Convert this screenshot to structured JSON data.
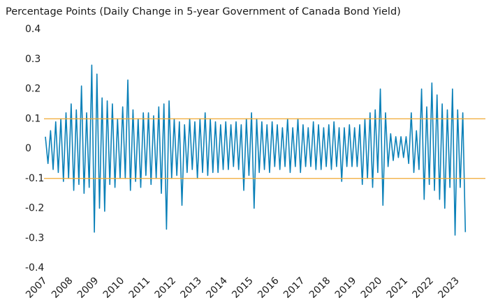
{
  "chart_data": {
    "type": "line",
    "title": "Percentage Points (Daily Change in 5-year Government of Canada Bond Yield)",
    "color": "#0a80b8",
    "ref_color": "#f0a830",
    "hlines": [
      0.1,
      -0.1
    ],
    "grid": false,
    "xlim": [
      2007,
      2023.4
    ],
    "xticks": [
      2007,
      2008,
      2009,
      2010,
      2011,
      2012,
      2013,
      2014,
      2015,
      2016,
      2017,
      2018,
      2019,
      2020,
      2021,
      2022,
      2023
    ],
    "ylim": [
      -0.4,
      0.4
    ],
    "yticks": [
      0.4,
      0.3,
      0.2,
      0.1,
      0,
      -0.1,
      -0.2,
      -0.3,
      -0.4
    ],
    "x": [
      2007.0,
      2007.1,
      2007.2,
      2007.3,
      2007.4,
      2007.5,
      2007.6,
      2007.7,
      2007.8,
      2007.9,
      2008.0,
      2008.1,
      2008.2,
      2008.3,
      2008.4,
      2008.5,
      2008.6,
      2008.7,
      2008.8,
      2008.9,
      2009.0,
      2009.1,
      2009.2,
      2009.3,
      2009.4,
      2009.5,
      2009.6,
      2009.7,
      2009.8,
      2009.9,
      2010.0,
      2010.1,
      2010.2,
      2010.3,
      2010.4,
      2010.5,
      2010.6,
      2010.7,
      2010.8,
      2010.9,
      2011.0,
      2011.1,
      2011.2,
      2011.3,
      2011.4,
      2011.5,
      2011.6,
      2011.7,
      2011.8,
      2011.9,
      2012.0,
      2012.1,
      2012.2,
      2012.3,
      2012.4,
      2012.5,
      2012.6,
      2012.7,
      2012.8,
      2012.9,
      2013.0,
      2013.1,
      2013.2,
      2013.3,
      2013.4,
      2013.5,
      2013.6,
      2013.7,
      2013.8,
      2013.9,
      2014.0,
      2014.1,
      2014.2,
      2014.3,
      2014.4,
      2014.5,
      2014.6,
      2014.7,
      2014.8,
      2014.9,
      2015.0,
      2015.1,
      2015.2,
      2015.3,
      2015.4,
      2015.5,
      2015.6,
      2015.7,
      2015.8,
      2015.9,
      2016.0,
      2016.1,
      2016.2,
      2016.3,
      2016.4,
      2016.5,
      2016.6,
      2016.7,
      2016.8,
      2016.9,
      2017.0,
      2017.1,
      2017.2,
      2017.3,
      2017.4,
      2017.5,
      2017.6,
      2017.7,
      2017.8,
      2017.9,
      2018.0,
      2018.1,
      2018.2,
      2018.3,
      2018.4,
      2018.5,
      2018.6,
      2018.7,
      2018.8,
      2018.9,
      2019.0,
      2019.1,
      2019.2,
      2019.3,
      2019.4,
      2019.5,
      2019.6,
      2019.7,
      2019.8,
      2019.9,
      2020.0,
      2020.1,
      2020.2,
      2020.3,
      2020.4,
      2020.5,
      2020.6,
      2020.7,
      2020.8,
      2020.9,
      2021.0,
      2021.1,
      2021.2,
      2021.3,
      2021.4,
      2021.5,
      2021.6,
      2021.7,
      2021.8,
      2021.9,
      2022.0,
      2022.1,
      2022.2,
      2022.3,
      2022.4,
      2022.5,
      2022.6,
      2022.7,
      2022.8,
      2022.9,
      2023.0,
      2023.1,
      2023.2,
      2023.3
    ],
    "values": [
      0.04,
      -0.05,
      0.06,
      -0.07,
      0.09,
      -0.08,
      0.1,
      -0.11,
      0.12,
      -0.1,
      0.15,
      -0.14,
      0.13,
      -0.12,
      0.21,
      -0.15,
      0.12,
      -0.13,
      0.28,
      -0.28,
      0.25,
      -0.2,
      0.17,
      -0.21,
      0.16,
      -0.12,
      0.15,
      -0.13,
      0.1,
      -0.1,
      0.14,
      -0.1,
      0.23,
      -0.14,
      0.13,
      -0.11,
      0.1,
      -0.13,
      0.12,
      -0.09,
      0.12,
      -0.12,
      0.11,
      -0.1,
      0.14,
      -0.15,
      0.15,
      -0.27,
      0.16,
      -0.1,
      0.1,
      -0.09,
      0.09,
      -0.19,
      0.08,
      -0.08,
      0.1,
      -0.07,
      0.09,
      -0.1,
      0.1,
      -0.08,
      0.12,
      -0.09,
      0.1,
      -0.08,
      0.09,
      -0.08,
      0.08,
      -0.07,
      0.09,
      -0.07,
      0.08,
      -0.06,
      0.09,
      -0.07,
      0.08,
      -0.14,
      0.1,
      -0.09,
      0.12,
      -0.2,
      0.1,
      -0.08,
      0.09,
      -0.07,
      0.08,
      -0.08,
      0.09,
      -0.06,
      0.08,
      -0.07,
      0.07,
      -0.06,
      0.1,
      -0.08,
      0.07,
      -0.06,
      0.1,
      -0.08,
      0.08,
      -0.06,
      0.07,
      -0.06,
      0.09,
      -0.07,
      0.08,
      -0.07,
      0.07,
      -0.06,
      0.08,
      -0.07,
      0.09,
      -0.06,
      0.07,
      -0.11,
      0.07,
      -0.06,
      0.08,
      -0.06,
      0.07,
      -0.06,
      0.08,
      -0.12,
      0.1,
      -0.1,
      0.12,
      -0.13,
      0.13,
      -0.08,
      0.2,
      -0.19,
      0.12,
      -0.06,
      0.05,
      -0.04,
      0.04,
      -0.03,
      0.04,
      -0.03,
      0.04,
      -0.05,
      0.12,
      -0.08,
      0.06,
      -0.07,
      0.2,
      -0.17,
      0.14,
      -0.12,
      0.22,
      -0.14,
      0.18,
      -0.17,
      0.15,
      -0.2,
      0.13,
      -0.13,
      0.2,
      -0.29,
      0.13,
      -0.13,
      0.12,
      -0.28
    ]
  }
}
